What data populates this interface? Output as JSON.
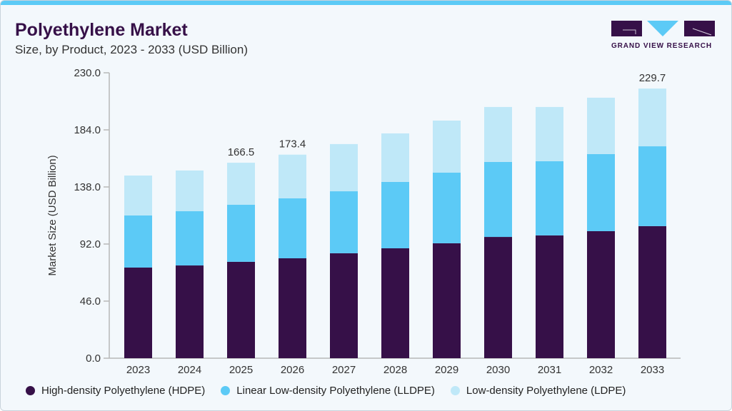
{
  "header": {
    "title": "Polyethylene Market",
    "subtitle": "Size, by Product, 2023 - 2033 (USD Billion)"
  },
  "logo": {
    "text": "GRAND VIEW RESEARCH",
    "colors": [
      "#361048",
      "#5ccaf6"
    ]
  },
  "chart_data": {
    "type": "bar",
    "stacked": true,
    "title": "Polyethylene Market",
    "subtitle": "Size, by Product, 2023 - 2033 (USD Billion)",
    "xlabel": "",
    "ylabel": "Market Size (USD Billion)",
    "ylim": [
      0,
      230
    ],
    "yticks": [
      "0.0",
      "46.0",
      "92.0",
      "138.0",
      "184.0",
      "230.0"
    ],
    "grid": false,
    "legend_position": "bottom",
    "categories": [
      "2023",
      "2024",
      "2025",
      "2026",
      "2027",
      "2028",
      "2029",
      "2030",
      "2031",
      "2032",
      "2033"
    ],
    "series": [
      {
        "name": "High-density Polyethylene (HDPE)",
        "color": "#361048",
        "values": [
          77.2,
          79.0,
          82.1,
          85.1,
          89.4,
          93.6,
          97.9,
          103.3,
          104.6,
          108.2,
          112.5
        ]
      },
      {
        "name": "Linear Low-density Polyethylene (LLDPE)",
        "color": "#5ccaf6",
        "values": [
          44.4,
          46.2,
          48.6,
          51.1,
          52.8,
          56.6,
          60.2,
          63.9,
          63.2,
          65.7,
          68.0
        ]
      },
      {
        "name": "Low-density Polyethylene (LDPE)",
        "color": "#bfe8f8",
        "values": [
          34.0,
          34.7,
          35.8,
          37.2,
          40.2,
          41.3,
          44.3,
          46.8,
          46.2,
          48.0,
          49.2
        ]
      }
    ],
    "annotations": [
      {
        "category": "2025",
        "label": "166.5"
      },
      {
        "category": "2026",
        "label": "173.4"
      },
      {
        "category": "2033",
        "label": "229.7"
      }
    ]
  }
}
